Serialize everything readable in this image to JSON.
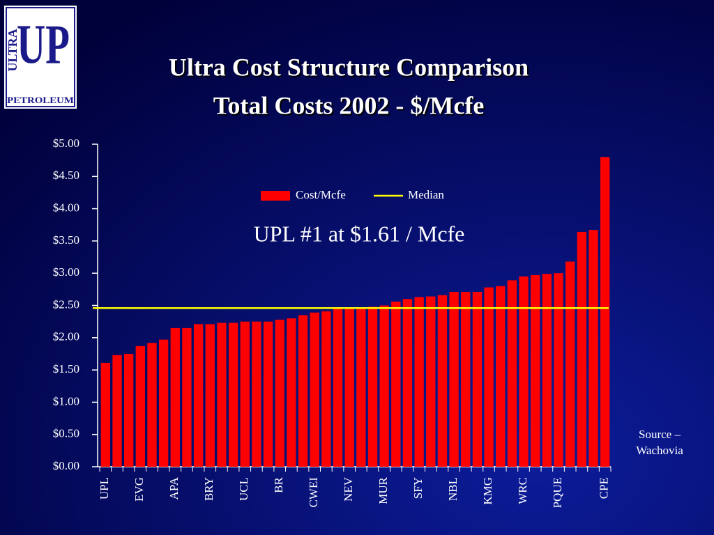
{
  "logo": {
    "main": "UP",
    "side": "ULTRA",
    "bottom": "PETROLEUM"
  },
  "chart_data": {
    "type": "bar",
    "title": [
      "Ultra Cost Structure Comparison",
      "Total Costs 2002 - $/Mcfe"
    ],
    "annotation": "UPL #1 at $1.61 / Mcfe",
    "source": [
      "Source –",
      "Wachovia"
    ],
    "categories": [
      "UPL",
      null,
      null,
      "EVG",
      null,
      null,
      "APA",
      null,
      null,
      "BRY",
      null,
      null,
      "UCL",
      null,
      null,
      "BR",
      null,
      null,
      "CWEI",
      null,
      null,
      "NEV",
      null,
      null,
      "MUR",
      null,
      null,
      "SFY",
      null,
      null,
      "NBL",
      null,
      null,
      "KMG",
      null,
      null,
      "WRC",
      null,
      null,
      "PQUE",
      null,
      null,
      null,
      "CPE"
    ],
    "series": [
      {
        "name": "Cost/Mcfe",
        "color": "#ff0000",
        "values": [
          1.61,
          1.73,
          1.75,
          1.87,
          1.92,
          1.97,
          2.15,
          2.15,
          2.21,
          2.21,
          2.23,
          2.23,
          2.25,
          2.25,
          2.25,
          2.28,
          2.3,
          2.35,
          2.39,
          2.41,
          2.45,
          2.45,
          2.46,
          2.48,
          2.5,
          2.56,
          2.6,
          2.63,
          2.64,
          2.66,
          2.71,
          2.71,
          2.71,
          2.78,
          2.8,
          2.89,
          2.95,
          2.97,
          2.99,
          3.0,
          3.18,
          3.64,
          3.67,
          4.8
        ]
      }
    ],
    "reference_line": {
      "name": "Median",
      "color": "#ffff00",
      "value": 2.46
    },
    "ylim": [
      0,
      5
    ],
    "yticks": [
      {
        "value": 0,
        "label": "$0.00"
      },
      {
        "value": 0.5,
        "label": "$0.50"
      },
      {
        "value": 1,
        "label": "$1.00"
      },
      {
        "value": 1.5,
        "label": "$1.50"
      },
      {
        "value": 2,
        "label": "$2.00"
      },
      {
        "value": 2.5,
        "label": "$2.50"
      },
      {
        "value": 3,
        "label": "$3.00"
      },
      {
        "value": 3.5,
        "label": "$3.50"
      },
      {
        "value": 4,
        "label": "$4.00"
      },
      {
        "value": 4.5,
        "label": "$4.50"
      },
      {
        "value": 5,
        "label": "$5.00"
      }
    ],
    "grid": false,
    "legend": "top"
  }
}
